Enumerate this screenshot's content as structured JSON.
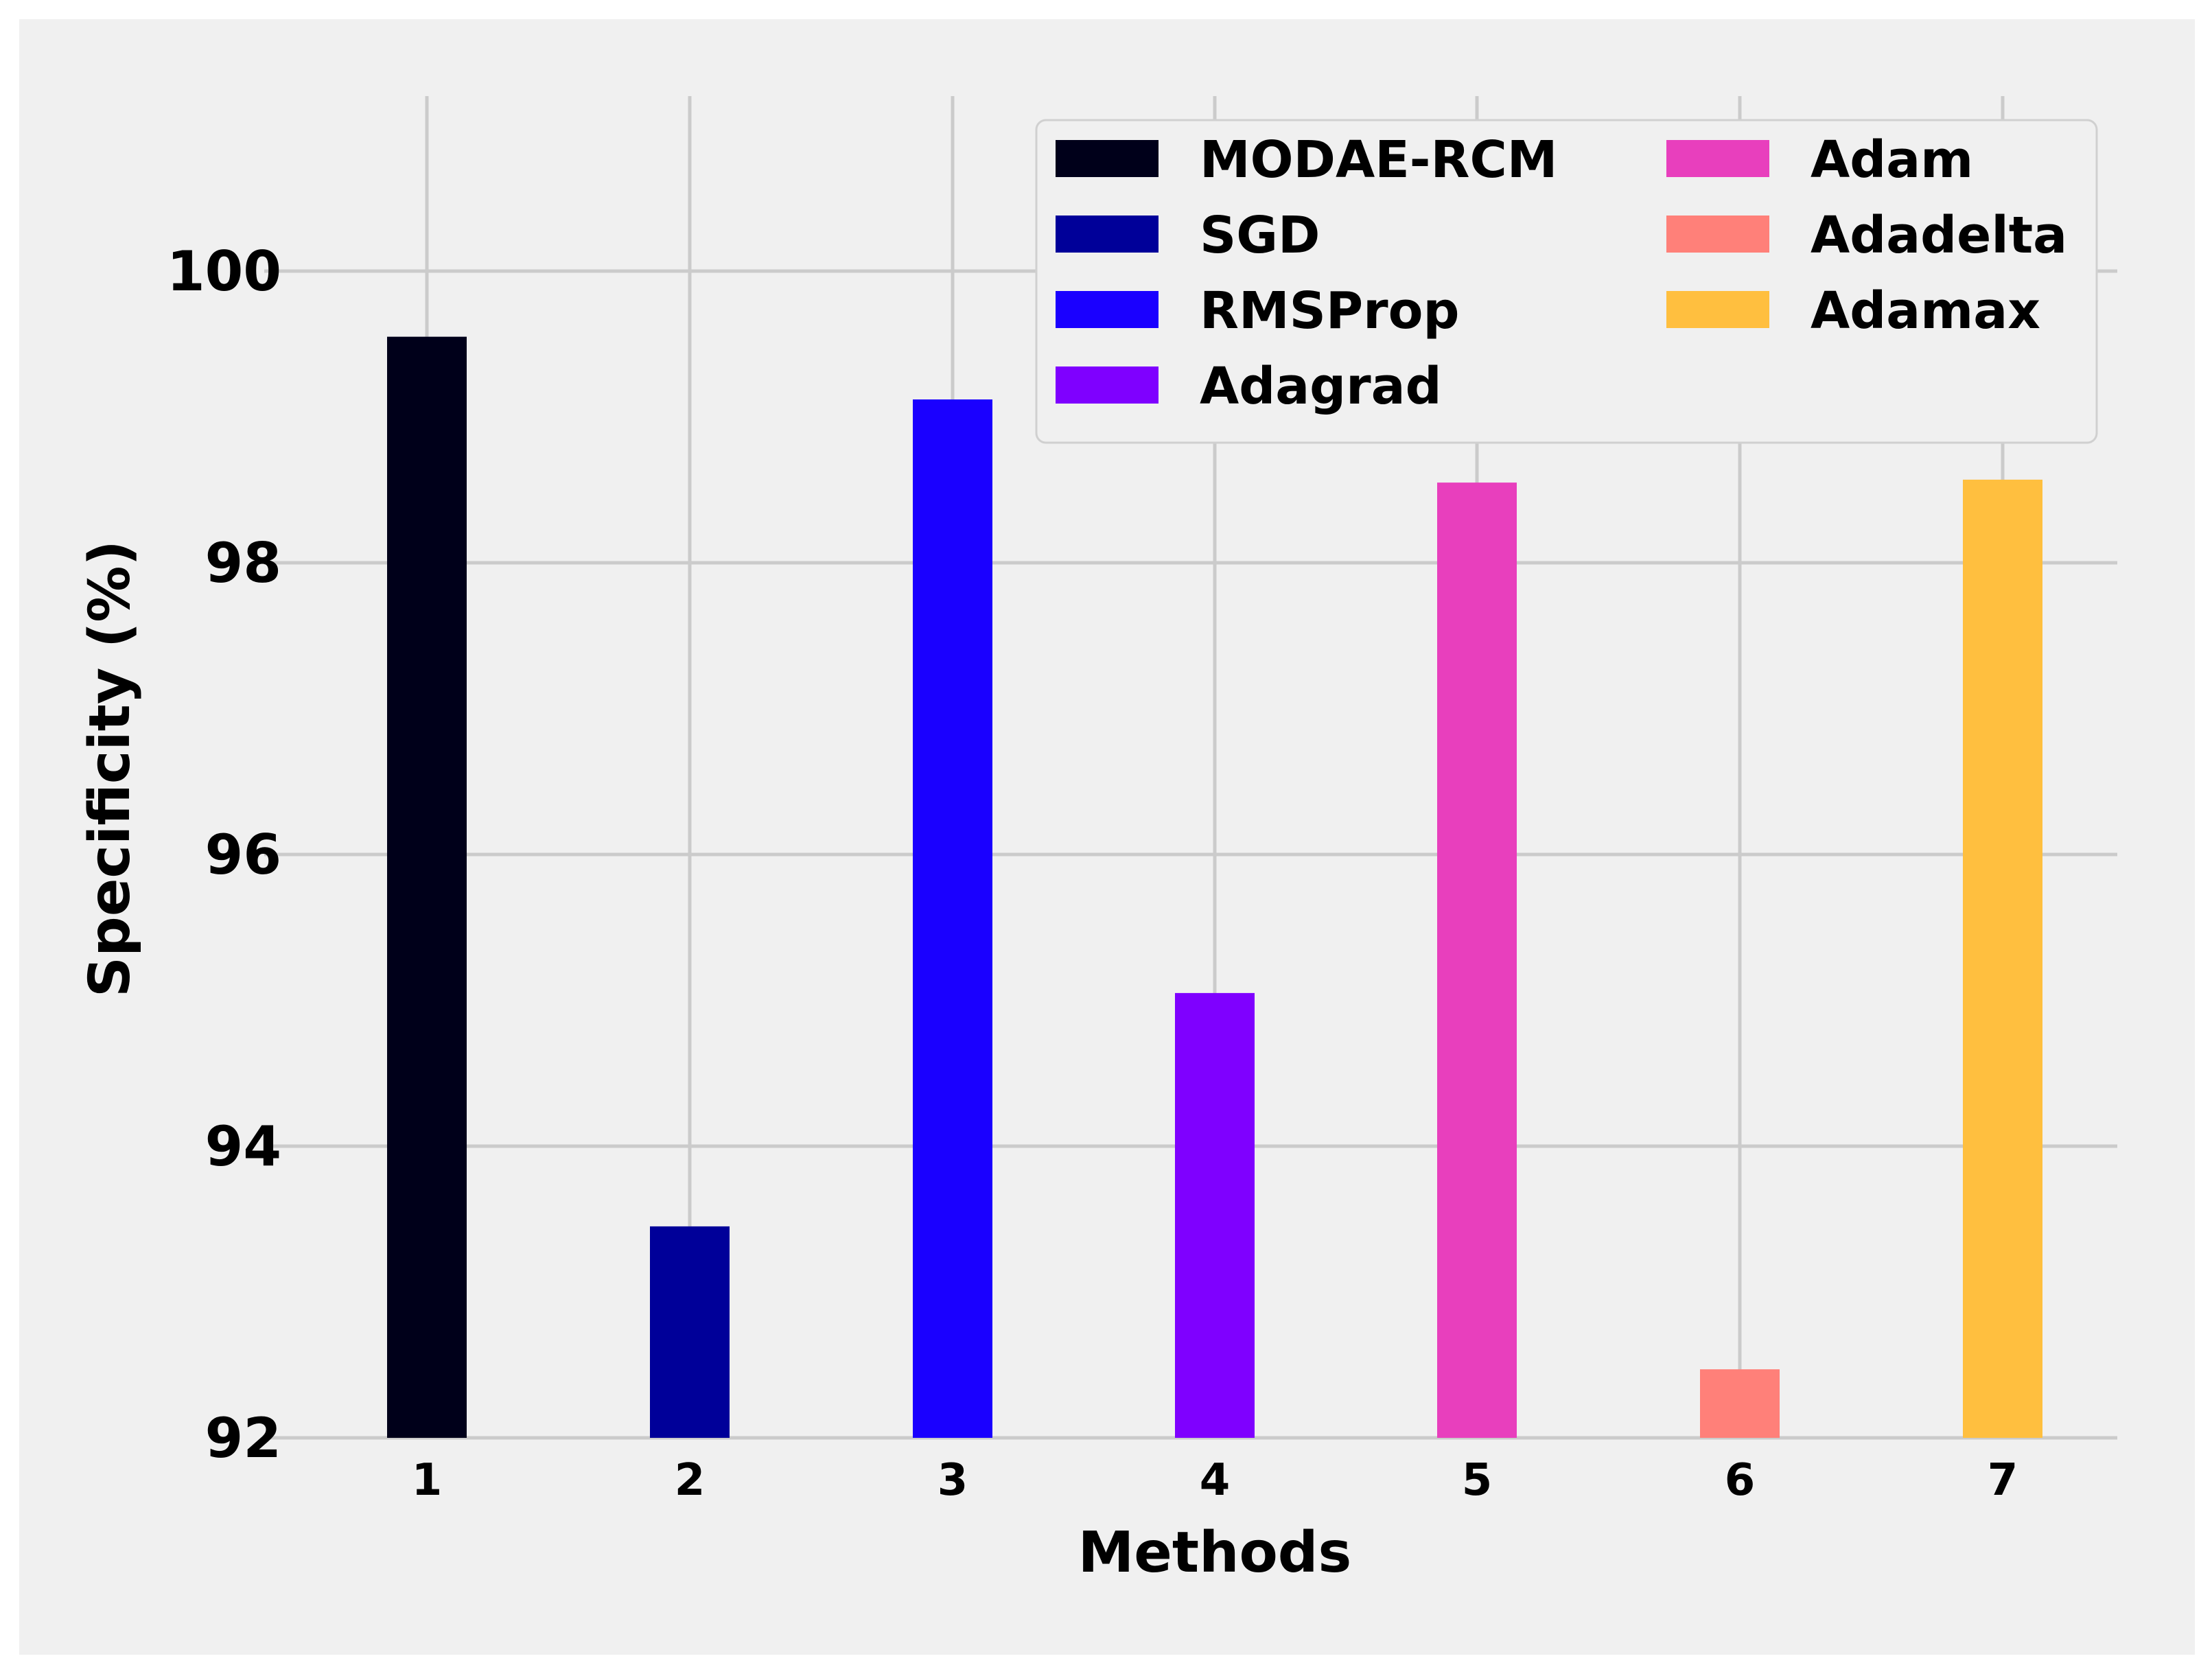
{
  "chart_data": {
    "type": "bar",
    "title": "",
    "xlabel": "Methods",
    "ylabel": "Specificity (%)",
    "categories": [
      "1",
      "2",
      "3",
      "4",
      "5",
      "6",
      "7"
    ],
    "ylim": [
      92,
      101.2
    ],
    "yticks": [
      92,
      94,
      96,
      98,
      100
    ],
    "ytick_labels": [
      "92",
      "94",
      "96",
      "98",
      "100"
    ],
    "grid": true,
    "legend_position": "top-right",
    "legend_columns": 2,
    "series": [
      {
        "name": "MODAE-RCM",
        "category": "1",
        "value": 99.55,
        "color": "#00001a"
      },
      {
        "name": "SGD",
        "category": "2",
        "value": 93.45,
        "color": "#000099"
      },
      {
        "name": "RMSProp",
        "category": "3",
        "value": 99.12,
        "color": "#1a00ff"
      },
      {
        "name": "Adagrad",
        "category": "4",
        "value": 95.05,
        "color": "#7f00ff"
      },
      {
        "name": "Adam",
        "category": "5",
        "value": 98.55,
        "color": "#e83fbd"
      },
      {
        "name": "Adadelta",
        "category": "6",
        "value": 92.47,
        "color": "#ff8079"
      },
      {
        "name": "Adamax",
        "category": "7",
        "value": 98.57,
        "color": "#ffbf3f"
      }
    ]
  }
}
